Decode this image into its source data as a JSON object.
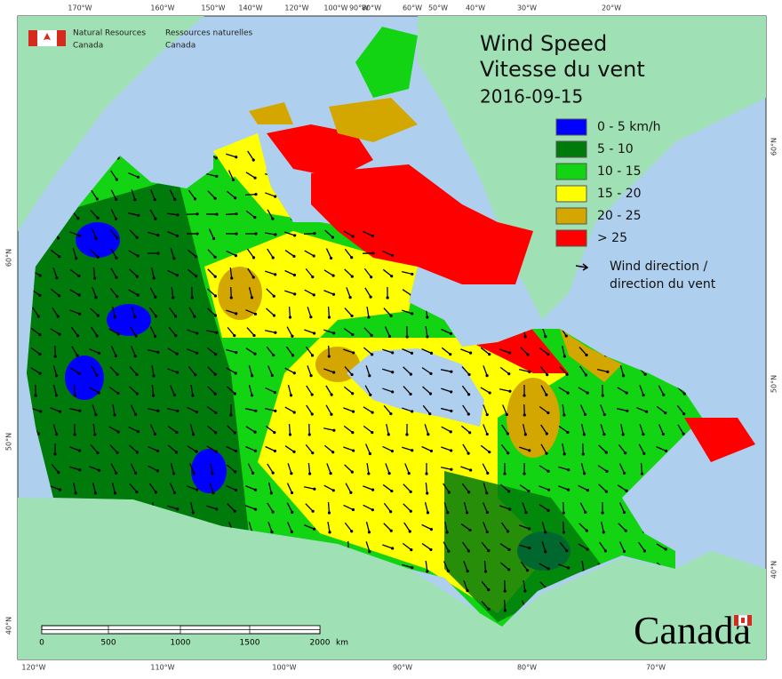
{
  "header": {
    "org_en": [
      "Natural Resources",
      "Canada"
    ],
    "org_fr": [
      "Ressources naturelles",
      "Canada"
    ]
  },
  "title": {
    "line1": "Wind Speed",
    "line2": "Vitesse du vent",
    "date": "2016-09-15"
  },
  "legend": {
    "items": [
      {
        "label": "0 - 5 km/h",
        "color": "#0000ff"
      },
      {
        "label": "5 - 10",
        "color": "#007a0a"
      },
      {
        "label": "10 - 15",
        "color": "#12d412"
      },
      {
        "label": "15 - 20",
        "color": "#ffff00"
      },
      {
        "label": "20 - 25",
        "color": "#d4a600"
      },
      {
        "label": "> 25",
        "color": "#ff0000"
      }
    ],
    "direction": [
      "Wind direction /",
      "direction du vent"
    ]
  },
  "top_longitudes": [
    "170°W",
    "160°W",
    "150°W",
    "140°W",
    "120°W",
    "100°W",
    "90°W",
    "80°W",
    "60°W",
    "50°W",
    "40°W",
    "30°W",
    "20°W"
  ],
  "bottom_longitudes": [
    "120°W",
    "110°W",
    "100°W",
    "90°W",
    "80°W",
    "70°W"
  ],
  "left_latitudes": [
    "60°N",
    "50°N",
    "40°N"
  ],
  "right_latitudes": [
    "60°N",
    "50°N",
    "40°N"
  ],
  "scale": {
    "ticks": [
      "0",
      "500",
      "1000",
      "1500",
      "2000"
    ],
    "unit": "km"
  },
  "wordmark": "Canada"
}
